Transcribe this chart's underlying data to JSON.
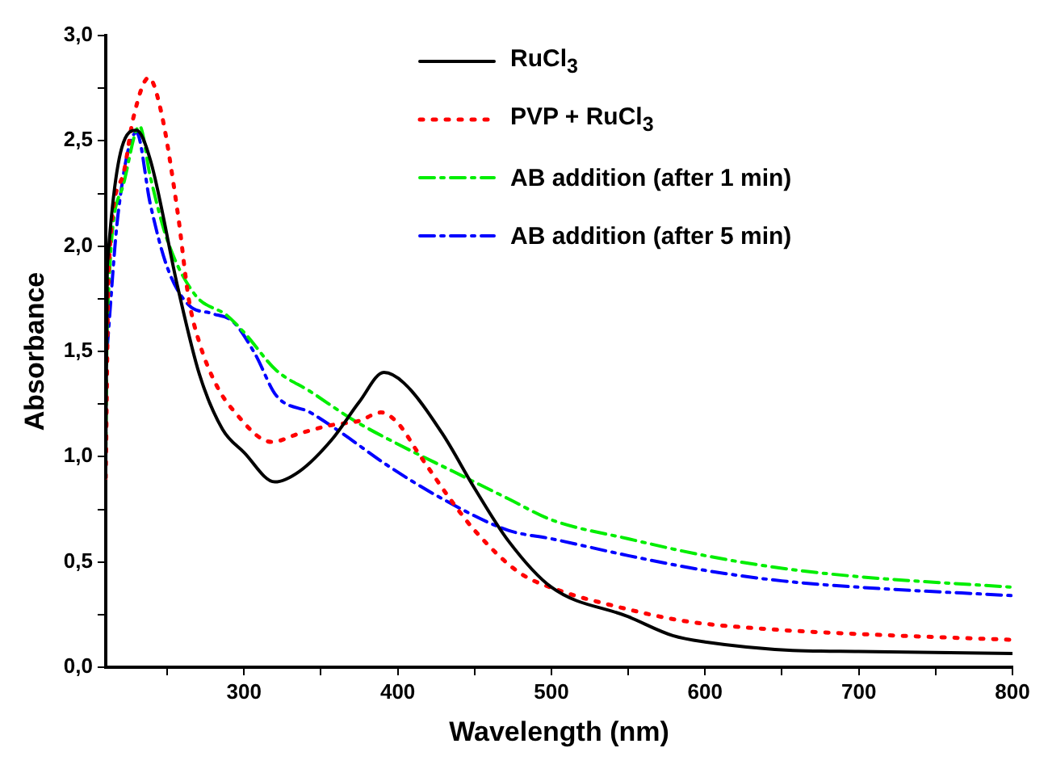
{
  "chart_data": {
    "type": "line",
    "xlabel": "Wavelength (nm)",
    "ylabel": "Absorbance",
    "xlim": [
      210,
      800
    ],
    "xticks": [
      {
        "value": 250,
        "label": null
      },
      300,
      {
        "value": 350,
        "label": null
      },
      400,
      {
        "value": 450,
        "label": null
      },
      500,
      {
        "value": 550,
        "label": null
      },
      600,
      {
        "value": 650,
        "label": null
      },
      700,
      {
        "value": 750,
        "label": null
      },
      800
    ],
    "ylim": [
      0,
      3
    ],
    "yticks": [
      {
        "value": 0,
        "label": "0,0"
      },
      {
        "value": 0.25,
        "label": null
      },
      {
        "value": 0.5,
        "label": "0,5"
      },
      {
        "value": 0.75,
        "label": null
      },
      {
        "value": 1,
        "label": "1,0"
      },
      {
        "value": 1.25,
        "label": null
      },
      {
        "value": 1.5,
        "label": "1,5"
      },
      {
        "value": 1.75,
        "label": null
      },
      {
        "value": 2,
        "label": "2,0"
      },
      {
        "value": 2.25,
        "label": null
      },
      {
        "value": 2.5,
        "label": "2,5"
      },
      {
        "value": 2.75,
        "label": null
      },
      {
        "value": 3,
        "label": "3,0"
      }
    ],
    "grid": false,
    "legend": "top",
    "marker": "none",
    "series": [
      {
        "name": "RuCl$_{3}$",
        "color": "#000000",
        "line_style": "solid",
        "x": [
          210,
          211,
          230,
          239,
          257,
          271,
          286,
          300,
          320,
          336,
          357,
          375,
          391,
          404,
          429,
          450,
          472,
          500,
          550,
          579,
          600,
          657,
          700,
          800
        ],
        "values": [
          0.9,
          1.9,
          2.55,
          2.41,
          1.8,
          1.39,
          1.13,
          1.02,
          0.88,
          0.93,
          1.08,
          1.26,
          1.4,
          1.35,
          1.11,
          0.85,
          0.6,
          0.38,
          0.24,
          0.15,
          0.12,
          0.08,
          0.075,
          0.065
        ]
      },
      {
        "name": "PVP + RuCl$_{3}$",
        "color": "#ff0000",
        "line_style": "dotted",
        "x": [
          210,
          212,
          221,
          228,
          238,
          246,
          257,
          264,
          271,
          282,
          293,
          318,
          336,
          357,
          375,
          389,
          400,
          414,
          436,
          450,
          479,
          507,
          536,
          586,
          643,
          693,
          800
        ],
        "values": [
          0.9,
          1.9,
          2.33,
          2.61,
          2.8,
          2.64,
          2.15,
          1.75,
          1.54,
          1.34,
          1.22,
          1.07,
          1.11,
          1.15,
          1.17,
          1.21,
          1.16,
          1.01,
          0.78,
          0.65,
          0.45,
          0.36,
          0.3,
          0.22,
          0.18,
          0.16,
          0.13
        ]
      },
      {
        "name": "AB addition (after 1 min)",
        "color": "#00ee00",
        "line_style": "dashed",
        "x": [
          210,
          211,
          221,
          232,
          239,
          250,
          268,
          289,
          300,
          321,
          343,
          372,
          400,
          436,
          472,
          500,
          550,
          600,
          650,
          700,
          800
        ],
        "values": [
          1.0,
          1.64,
          2.28,
          2.57,
          2.33,
          2.03,
          1.77,
          1.67,
          1.59,
          1.41,
          1.31,
          1.17,
          1.06,
          0.93,
          0.8,
          0.7,
          0.61,
          0.53,
          0.47,
          0.43,
          0.38
        ]
      },
      {
        "name": "AB addition (after 5 min)",
        "color": "#0000ff",
        "line_style": "dashed",
        "x": [
          211,
          218,
          230,
          239,
          250,
          264,
          279,
          293,
          307,
          321,
          343,
          364,
          393,
          429,
          472,
          500,
          550,
          600,
          650,
          700,
          800
        ],
        "values": [
          1.52,
          2.15,
          2.54,
          2.2,
          1.9,
          1.72,
          1.68,
          1.64,
          1.49,
          1.29,
          1.21,
          1.11,
          0.96,
          0.8,
          0.65,
          0.61,
          0.53,
          0.46,
          0.41,
          0.38,
          0.34
        ]
      }
    ]
  }
}
